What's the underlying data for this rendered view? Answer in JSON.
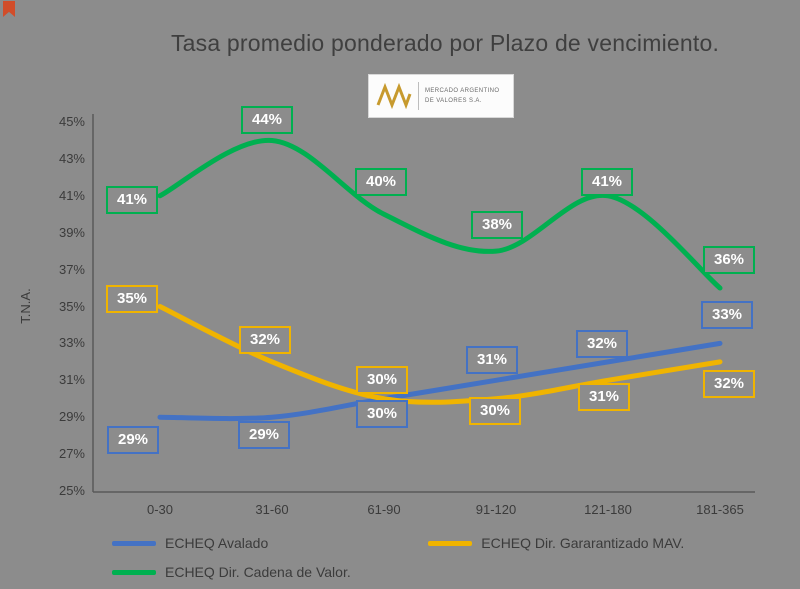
{
  "logo": {
    "line1": "MERCADO ARGENTINO",
    "line2": "DE VALORES S.A."
  },
  "chart_data": {
    "type": "line",
    "title": "Tasa promedio ponderado por Plazo de vencimiento.",
    "ylabel": "T.N.A.",
    "xlabel": "",
    "ylim": [
      25,
      45
    ],
    "ytick_step": 2,
    "yticks": [
      "45%",
      "43%",
      "41%",
      "39%",
      "37%",
      "35%",
      "33%",
      "31%",
      "29%",
      "27%",
      "25%"
    ],
    "categories": [
      "0-30",
      "31-60",
      "61-90",
      "91-120",
      "121-180",
      "181-365"
    ],
    "series": [
      {
        "name": "ECHEQ Avalado",
        "color": "#4472C4",
        "values": [
          29,
          29,
          30,
          31,
          32,
          33
        ]
      },
      {
        "name": "ECHEQ Dir. Gararantizado MAV.",
        "color": "#F0B400",
        "values": [
          35,
          32,
          30,
          30,
          31,
          32
        ]
      },
      {
        "name": "ECHEQ Dir. Cadena de Valor.",
        "color": "#00B050",
        "values": [
          41,
          44,
          40,
          38,
          41,
          36
        ]
      }
    ],
    "data_label_suffix": "%",
    "grid": false,
    "legend_position": "bottom"
  },
  "colors": {
    "background": "#8C8C8C",
    "axis": "#595959",
    "text": "#3B3B3B",
    "label_text": "#FFFFFF",
    "logo_gold": "#C79A2E",
    "corner_mark": "#D14D2A"
  }
}
